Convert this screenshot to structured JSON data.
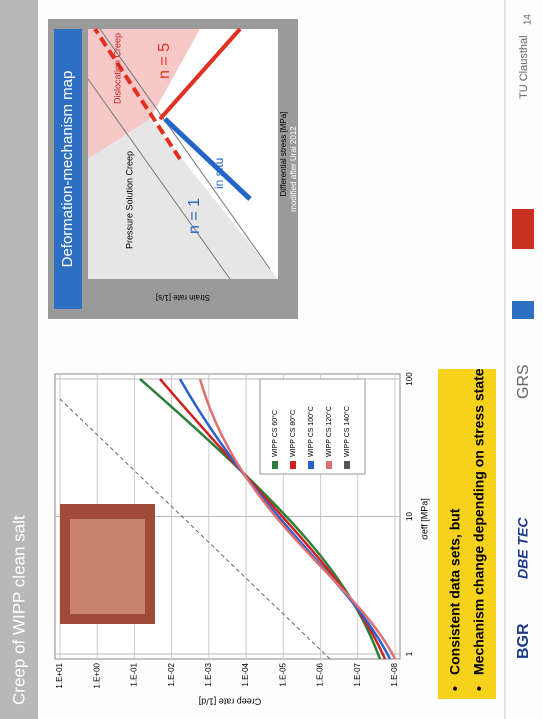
{
  "header": {
    "title": "Creep of WIPP clean salt",
    "slide_number": "14"
  },
  "left_chart": {
    "y_label": "Creep rate [1/d]",
    "x_label": "σeff [MPa]",
    "y_ticks": [
      "1.E+01",
      "1.E+00",
      "1.E-01",
      "1.E-02",
      "1.E-03",
      "1.E-04",
      "1.E-05",
      "1.E-06",
      "1.E-07",
      "1.E-08"
    ],
    "x_ticks": [
      "1",
      "10",
      "100"
    ],
    "legend": [
      "WIPP CS 60°C",
      "WIPP CS 80°C",
      "WIPP CS 100°C",
      "WIPP CS 120°C",
      "WIPP CS 140°C"
    ]
  },
  "bullets": [
    "Consistent data sets, but",
    "Mechanism change depending on stress state"
  ],
  "right_panel": {
    "heading": "Deformation-mechanism map",
    "y_label": "Strain rate [1/s]",
    "x_label": "Differential stress [MPa]",
    "labels": [
      "Pressure Solution Creep",
      "Dislocation Creep",
      "n = 1",
      "n = 5",
      "in situ"
    ],
    "caption": "modified after Urai 2012"
  },
  "footer": {
    "logos": [
      "BGR",
      "DBE TEC",
      "GRS",
      "TU Clausthal"
    ]
  }
}
